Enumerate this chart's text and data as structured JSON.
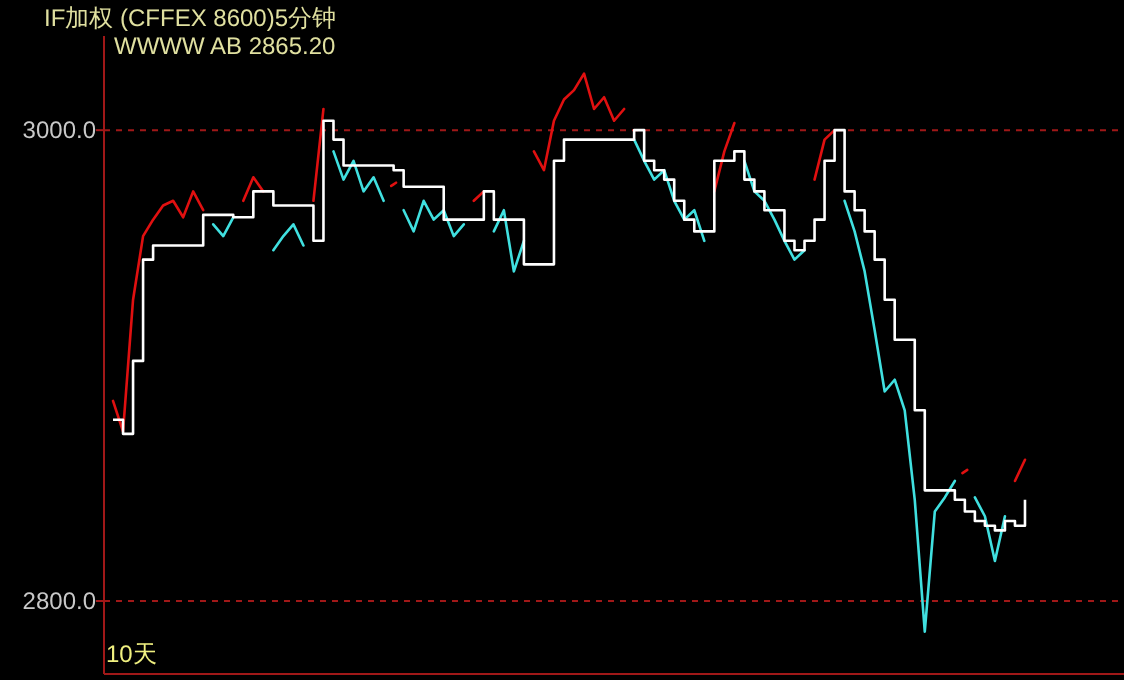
{
  "chart_data": {
    "type": "line",
    "title": "IF加权  (CFFEX 8600)5分钟",
    "annotations": [
      "WWWW  AB  2865.20",
      "10天"
    ],
    "categories": [
      null,
      null,
      null,
      null,
      null,
      null,
      null,
      null,
      null,
      null,
      null,
      null,
      null,
      null,
      null,
      null,
      null,
      null,
      null,
      null,
      null,
      null,
      null,
      null,
      null,
      null,
      null,
      null,
      null,
      null,
      null,
      null,
      null,
      null,
      null,
      null,
      null,
      null,
      null,
      null,
      null,
      null,
      null,
      null,
      null,
      null,
      null,
      null,
      null,
      null,
      null,
      null,
      null,
      null,
      null,
      null,
      null,
      null,
      null,
      null,
      null,
      null,
      null,
      null,
      null,
      null,
      null,
      null,
      null,
      null,
      null,
      null,
      null,
      null,
      null,
      null,
      null,
      null,
      null,
      null,
      null,
      null,
      null,
      null,
      null,
      null,
      null,
      null,
      null,
      null,
      null,
      null
    ],
    "ylim": [
      2769,
      3040
    ],
    "yticks": [
      {
        "value": 3000,
        "label": "3000.0"
      },
      {
        "value": 2800,
        "label": "2800.0"
      }
    ],
    "grid": "y",
    "series": [
      {
        "type": "line",
        "color": "#e01010",
        "values": [
          2885,
          2872,
          2928,
          2955,
          2962,
          2968,
          2970,
          2963,
          2974,
          2966,
          null,
          null,
          null,
          2970,
          2980,
          2974,
          null,
          null,
          null,
          null,
          2970,
          3009,
          null,
          null,
          null,
          null,
          null,
          null,
          2977,
          null,
          null,
          null,
          null,
          null,
          null,
          null,
          2970,
          2974,
          null,
          null,
          null,
          null,
          2991,
          2983,
          3004,
          3013,
          3017,
          3024,
          3009,
          3014,
          3004,
          3009,
          null,
          null,
          null,
          null,
          null,
          null,
          null,
          null,
          2974,
          2991,
          3003,
          null,
          null,
          null,
          null,
          null,
          null,
          null,
          2979,
          2996,
          3000,
          null,
          null,
          null,
          null,
          null,
          null,
          null,
          null,
          null,
          null,
          null,
          null,
          2855,
          null,
          null,
          null,
          null,
          2851,
          2860
        ]
      },
      {
        "type": "line",
        "color": "#40e0e0",
        "values": [
          null,
          null,
          null,
          null,
          null,
          null,
          null,
          null,
          null,
          null,
          2960,
          2955,
          2963,
          null,
          null,
          null,
          2949,
          2955,
          2960,
          2951,
          null,
          null,
          2991,
          2979,
          2987,
          2974,
          2980,
          2970,
          null,
          2966,
          2957,
          2970,
          2962,
          2966,
          2955,
          2960,
          null,
          null,
          2957,
          2966,
          2940,
          2953,
          null,
          null,
          null,
          null,
          null,
          null,
          null,
          null,
          null,
          null,
          2996,
          2987,
          2979,
          2983,
          2970,
          2962,
          2966,
          2953,
          null,
          null,
          null,
          2987,
          2974,
          2970,
          2962,
          2953,
          2945,
          2949,
          null,
          null,
          null,
          2970,
          2957,
          2940,
          2915,
          2889,
          2894,
          2881,
          2843,
          2787,
          2838,
          2844,
          2851,
          null,
          2844,
          2836,
          2817,
          2836,
          null,
          null
        ]
      },
      {
        "type": "step",
        "color": "#ffffff",
        "values": [
          2877,
          2871,
          2902,
          2945,
          2951,
          2951,
          2951,
          2951,
          2951,
          2964,
          2964,
          2964,
          2963,
          2963,
          2974,
          2974,
          2968,
          2968,
          2968,
          2968,
          2953,
          3004,
          2996,
          2985,
          2985,
          2985,
          2985,
          2985,
          2983,
          2976,
          2976,
          2976,
          2976,
          2962,
          2962,
          2962,
          2962,
          2974,
          2962,
          2962,
          2962,
          2943,
          2943,
          2943,
          2987,
          2996,
          2996,
          2996,
          2996,
          2996,
          2996,
          2996,
          3000,
          2987,
          2983,
          2979,
          2970,
          2962,
          2957,
          2957,
          2987,
          2987,
          2991,
          2979,
          2974,
          2966,
          2966,
          2953,
          2949,
          2953,
          2962,
          2987,
          3000,
          2974,
          2966,
          2957,
          2945,
          2928,
          2911,
          2911,
          2881,
          2847,
          2847,
          2847,
          2843,
          2838,
          2834,
          2832,
          2830,
          2834,
          2832,
          2843
        ]
      }
    ]
  }
}
